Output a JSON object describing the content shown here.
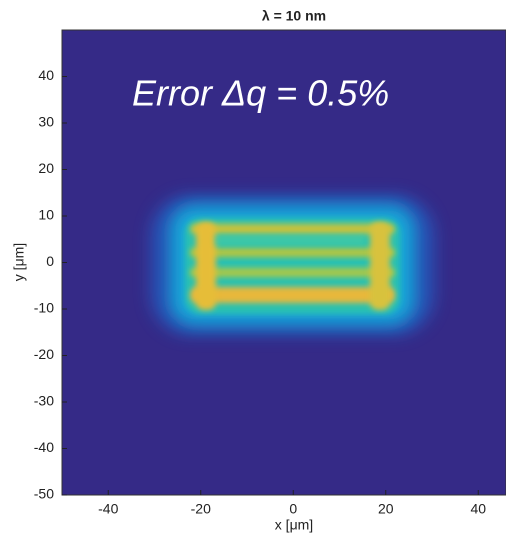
{
  "chart_data": {
    "type": "heatmap",
    "title": "λ = 10 nm",
    "annotation": "Error Δq = 0.5%",
    "x_label": "x [μm]",
    "y_label": "y [μm]",
    "xlim": [
      -50,
      46
    ],
    "ylim": [
      -50,
      50
    ],
    "xticks": [
      -40,
      -20,
      0,
      20,
      40
    ],
    "yticks": [
      -50,
      -40,
      -30,
      -20,
      -10,
      0,
      10,
      20,
      30,
      40
    ],
    "color": "#352a87"
  }
}
